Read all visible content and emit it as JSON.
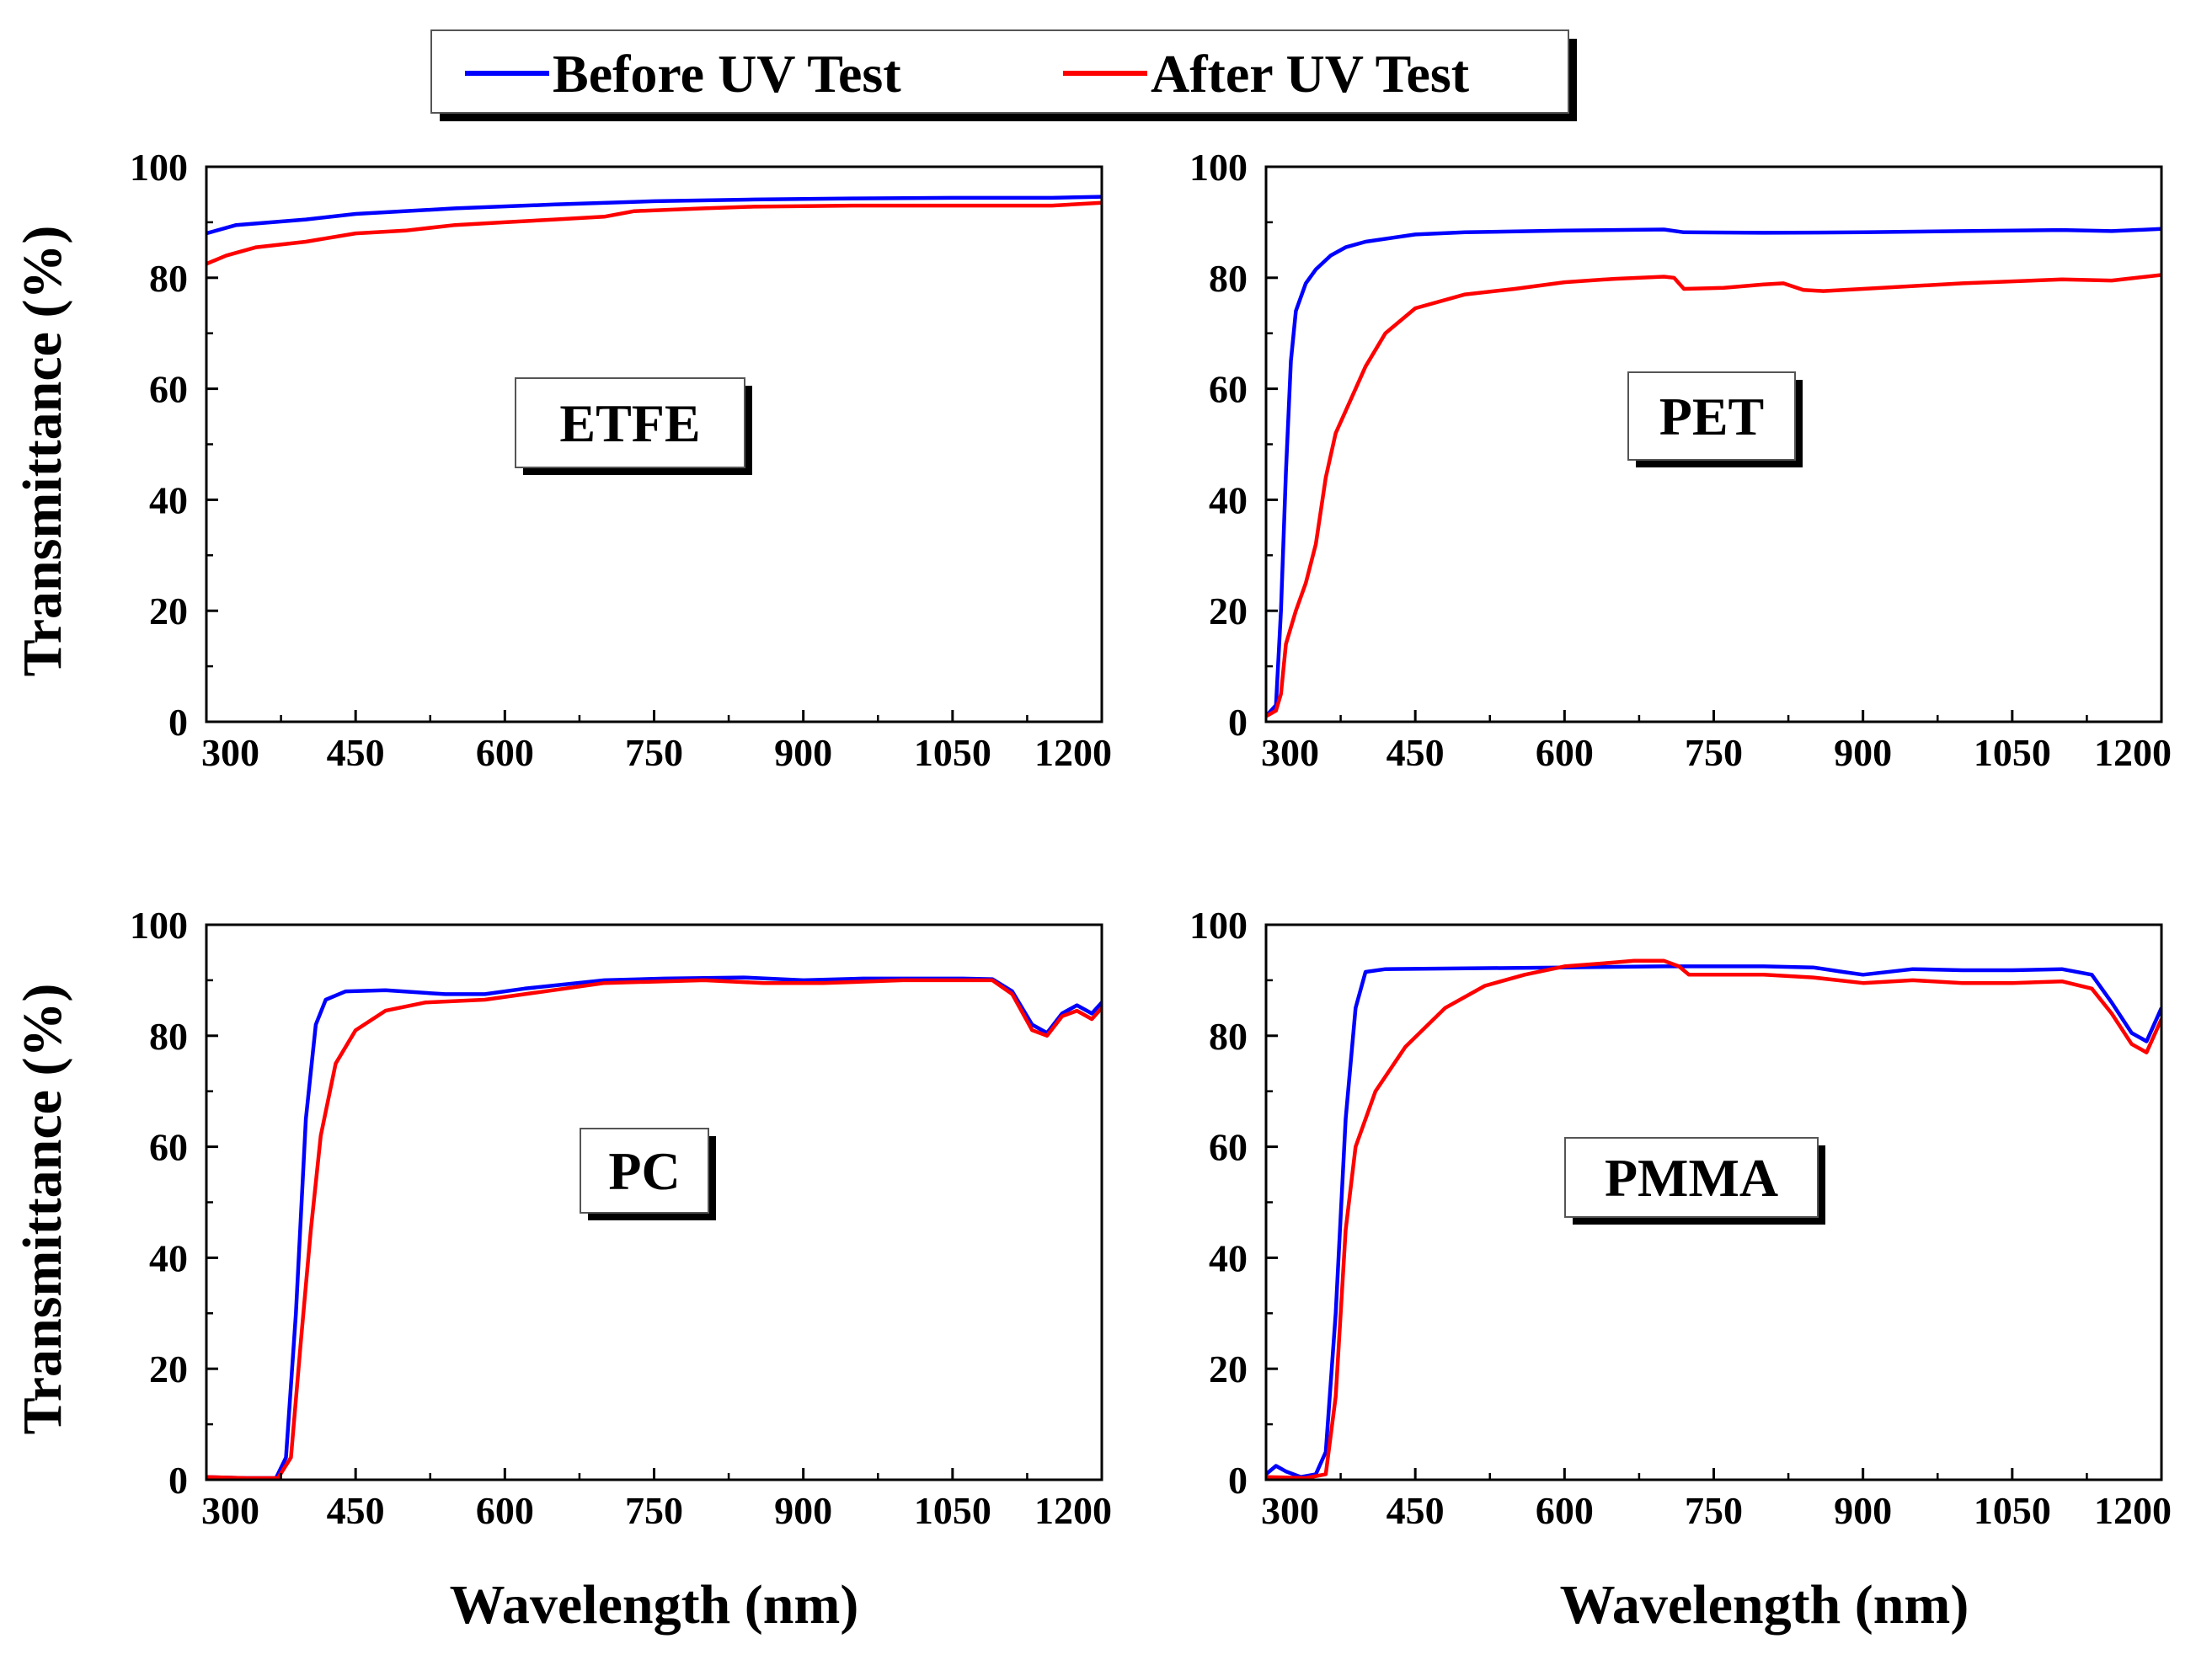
{
  "legend": {
    "entries": [
      {
        "name": "Before UV Test",
        "color": "#0000ff"
      },
      {
        "name": "After UV Test",
        "color": "#ff0000"
      }
    ]
  },
  "chart_data": [
    {
      "type": "line",
      "label": "ETFE",
      "xlabel": "",
      "ylabel": "Transmittance (%)",
      "xlim": [
        300,
        1200
      ],
      "ylim": [
        0,
        100
      ],
      "xticks": [
        "300",
        "450",
        "600",
        "750",
        "900",
        "1050",
        "1200"
      ],
      "yticks": [
        "0",
        "20",
        "40",
        "60",
        "80",
        "100"
      ],
      "series": [
        {
          "name": "Before UV Test",
          "color": "#0000ff",
          "points": [
            [
              300,
              88
            ],
            [
              330,
              89.5
            ],
            [
              400,
              90.5
            ],
            [
              450,
              91.5
            ],
            [
              550,
              92.5
            ],
            [
              650,
              93.2
            ],
            [
              750,
              93.8
            ],
            [
              850,
              94.1
            ],
            [
              950,
              94.3
            ],
            [
              1050,
              94.4
            ],
            [
              1150,
              94.4
            ],
            [
              1200,
              94.6
            ]
          ]
        },
        {
          "name": "After UV Test",
          "color": "#ff0000",
          "points": [
            [
              300,
              82.5
            ],
            [
              320,
              84
            ],
            [
              350,
              85.5
            ],
            [
              400,
              86.5
            ],
            [
              450,
              88
            ],
            [
              500,
              88.5
            ],
            [
              550,
              89.5
            ],
            [
              600,
              90
            ],
            [
              650,
              90.5
            ],
            [
              700,
              91
            ],
            [
              730,
              92
            ],
            [
              800,
              92.5
            ],
            [
              850,
              92.8
            ],
            [
              950,
              93
            ],
            [
              1050,
              93
            ],
            [
              1150,
              93
            ],
            [
              1200,
              93.5
            ]
          ]
        }
      ]
    },
    {
      "type": "line",
      "label": "PET",
      "xlabel": "",
      "ylabel": "",
      "xlim": [
        300,
        1200
      ],
      "ylim": [
        0,
        100
      ],
      "xticks": [
        "300",
        "450",
        "600",
        "750",
        "900",
        "1050",
        "1200"
      ],
      "yticks": [
        "0",
        "20",
        "40",
        "60",
        "80",
        "100"
      ],
      "series": [
        {
          "name": "Before UV Test",
          "color": "#0000ff",
          "points": [
            [
              300,
              1
            ],
            [
              310,
              3
            ],
            [
              315,
              20
            ],
            [
              320,
              45
            ],
            [
              325,
              65
            ],
            [
              330,
              74
            ],
            [
              340,
              79
            ],
            [
              350,
              81.5
            ],
            [
              365,
              84
            ],
            [
              380,
              85.5
            ],
            [
              400,
              86.5
            ],
            [
              450,
              87.8
            ],
            [
              500,
              88.2
            ],
            [
              600,
              88.5
            ],
            [
              700,
              88.7
            ],
            [
              720,
              88.2
            ],
            [
              800,
              88.1
            ],
            [
              900,
              88.2
            ],
            [
              1000,
              88.4
            ],
            [
              1100,
              88.6
            ],
            [
              1150,
              88.4
            ],
            [
              1200,
              88.8
            ]
          ]
        },
        {
          "name": "After UV Test",
          "color": "#ff0000",
          "points": [
            [
              300,
              1
            ],
            [
              310,
              2
            ],
            [
              315,
              5
            ],
            [
              320,
              14
            ],
            [
              330,
              20
            ],
            [
              340,
              25
            ],
            [
              350,
              32
            ],
            [
              360,
              44
            ],
            [
              370,
              52
            ],
            [
              385,
              58
            ],
            [
              400,
              64
            ],
            [
              420,
              70
            ],
            [
              450,
              74.5
            ],
            [
              500,
              77
            ],
            [
              550,
              78
            ],
            [
              600,
              79.2
            ],
            [
              650,
              79.8
            ],
            [
              700,
              80.2
            ],
            [
              710,
              80
            ],
            [
              720,
              78
            ],
            [
              760,
              78.2
            ],
            [
              800,
              78.8
            ],
            [
              820,
              79
            ],
            [
              840,
              77.8
            ],
            [
              860,
              77.6
            ],
            [
              900,
              78
            ],
            [
              1000,
              79
            ],
            [
              1100,
              79.7
            ],
            [
              1150,
              79.5
            ],
            [
              1200,
              80.5
            ]
          ]
        }
      ]
    },
    {
      "type": "line",
      "label": "PC",
      "xlabel": "Wavelength (nm)",
      "ylabel": "Transmittance (%)",
      "xlim": [
        300,
        1200
      ],
      "ylim": [
        0,
        100
      ],
      "xticks": [
        "300",
        "450",
        "600",
        "750",
        "900",
        "1050",
        "1200"
      ],
      "yticks": [
        "0",
        "20",
        "40",
        "60",
        "80",
        "100"
      ],
      "series": [
        {
          "name": "Before UV Test",
          "color": "#0000ff",
          "points": [
            [
              300,
              0.5
            ],
            [
              340,
              0.3
            ],
            [
              370,
              0.3
            ],
            [
              380,
              4
            ],
            [
              390,
              30
            ],
            [
              400,
              65
            ],
            [
              410,
              82
            ],
            [
              420,
              86.5
            ],
            [
              440,
              88
            ],
            [
              480,
              88.2
            ],
            [
              540,
              87.5
            ],
            [
              580,
              87.5
            ],
            [
              620,
              88.5
            ],
            [
              700,
              90
            ],
            [
              760,
              90.3
            ],
            [
              840,
              90.5
            ],
            [
              900,
              90
            ],
            [
              960,
              90.3
            ],
            [
              1060,
              90.3
            ],
            [
              1090,
              90.2
            ],
            [
              1110,
              88
            ],
            [
              1130,
              82
            ],
            [
              1145,
              80.5
            ],
            [
              1160,
              84
            ],
            [
              1175,
              85.5
            ],
            [
              1190,
              84
            ],
            [
              1200,
              86
            ]
          ]
        },
        {
          "name": "After UV Test",
          "color": "#ff0000",
          "points": [
            [
              300,
              0.5
            ],
            [
              340,
              0.3
            ],
            [
              372,
              0.3
            ],
            [
              385,
              4
            ],
            [
              395,
              25
            ],
            [
              405,
              45
            ],
            [
              415,
              62
            ],
            [
              430,
              75
            ],
            [
              450,
              81
            ],
            [
              480,
              84.5
            ],
            [
              520,
              86
            ],
            [
              580,
              86.5
            ],
            [
              620,
              87.5
            ],
            [
              700,
              89.5
            ],
            [
              800,
              90
            ],
            [
              860,
              89.5
            ],
            [
              920,
              89.5
            ],
            [
              1000,
              90
            ],
            [
              1090,
              90
            ],
            [
              1110,
              87.5
            ],
            [
              1130,
              81
            ],
            [
              1145,
              80
            ],
            [
              1160,
              83.5
            ],
            [
              1175,
              84.5
            ],
            [
              1190,
              83
            ],
            [
              1200,
              85
            ]
          ]
        }
      ]
    },
    {
      "type": "line",
      "label": "PMMA",
      "xlabel": "Wavelength (nm)",
      "ylabel": "",
      "xlim": [
        300,
        1200
      ],
      "ylim": [
        0,
        100
      ],
      "xticks": [
        "300",
        "450",
        "600",
        "750",
        "900",
        "1050",
        "1200"
      ],
      "yticks": [
        "0",
        "20",
        "40",
        "60",
        "80",
        "100"
      ],
      "series": [
        {
          "name": "Before UV Test",
          "color": "#0000ff",
          "points": [
            [
              300,
              1
            ],
            [
              310,
              2.5
            ],
            [
              320,
              1.5
            ],
            [
              335,
              0.5
            ],
            [
              350,
              1
            ],
            [
              360,
              5
            ],
            [
              370,
              30
            ],
            [
              380,
              65
            ],
            [
              390,
              85
            ],
            [
              400,
              91.5
            ],
            [
              420,
              92
            ],
            [
              600,
              92.3
            ],
            [
              700,
              92.5
            ],
            [
              800,
              92.5
            ],
            [
              850,
              92.3
            ],
            [
              880,
              91.5
            ],
            [
              900,
              91
            ],
            [
              950,
              92
            ],
            [
              1000,
              91.8
            ],
            [
              1050,
              91.8
            ],
            [
              1100,
              92
            ],
            [
              1130,
              91
            ],
            [
              1150,
              86
            ],
            [
              1170,
              80.5
            ],
            [
              1185,
              79
            ],
            [
              1200,
              85
            ]
          ]
        },
        {
          "name": "After UV Test",
          "color": "#ff0000",
          "points": [
            [
              300,
              0.5
            ],
            [
              340,
              0.3
            ],
            [
              360,
              1
            ],
            [
              370,
              15
            ],
            [
              380,
              45
            ],
            [
              390,
              60
            ],
            [
              410,
              70
            ],
            [
              440,
              78
            ],
            [
              480,
              85
            ],
            [
              520,
              89
            ],
            [
              560,
              91
            ],
            [
              600,
              92.5
            ],
            [
              650,
              93.2
            ],
            [
              670,
              93.5
            ],
            [
              700,
              93.5
            ],
            [
              715,
              92.5
            ],
            [
              725,
              91
            ],
            [
              800,
              91
            ],
            [
              850,
              90.5
            ],
            [
              900,
              89.5
            ],
            [
              950,
              90
            ],
            [
              1000,
              89.5
            ],
            [
              1050,
              89.5
            ],
            [
              1100,
              89.8
            ],
            [
              1130,
              88.5
            ],
            [
              1150,
              84
            ],
            [
              1170,
              78.5
            ],
            [
              1185,
              77
            ],
            [
              1200,
              83
            ]
          ]
        }
      ]
    }
  ]
}
